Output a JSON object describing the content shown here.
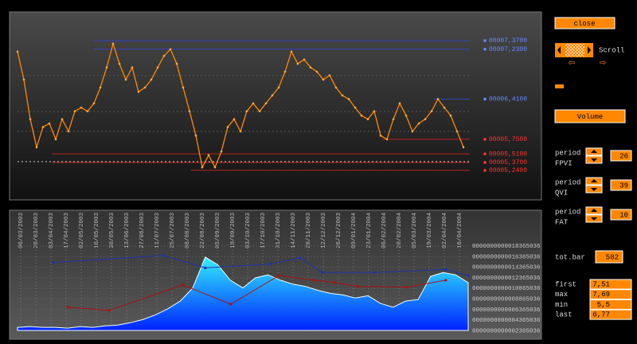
{
  "price_chart": {
    "ylim": [
      4.82,
      7.75
    ],
    "values": [
      7.19,
      6.73,
      6.08,
      5.62,
      5.95,
      6.01,
      5.75,
      6.08,
      5.88,
      6.21,
      6.27,
      6.21,
      6.34,
      6.6,
      6.93,
      7.32,
      6.99,
      6.73,
      6.93,
      6.53,
      6.6,
      6.73,
      6.93,
      7.12,
      7.23,
      6.99,
      6.6,
      6.21,
      5.81,
      5.29,
      5.49,
      5.29,
      5.55,
      5.95,
      6.08,
      5.88,
      6.21,
      6.34,
      6.21,
      6.34,
      6.47,
      6.6,
      6.86,
      7.19,
      6.99,
      7.06,
      6.93,
      6.86,
      6.73,
      6.8,
      6.6,
      6.47,
      6.41,
      6.27,
      6.14,
      6.08,
      6.21,
      5.81,
      5.75,
      6.08,
      6.34,
      6.14,
      5.88,
      6.01,
      6.08,
      6.21,
      6.41,
      6.27,
      6.14,
      5.88,
      5.62
    ],
    "levels": [
      {
        "value": 7.37,
        "label": "00007,3700",
        "color": "#3344bb"
      },
      {
        "value": 7.23,
        "label": "00007,2300",
        "color": "#3344bb"
      },
      {
        "value": 6.41,
        "label": "00006,4100",
        "color": "#3344bb"
      },
      {
        "value": 5.75,
        "label": "00005,7500",
        "color": "#bb2222"
      },
      {
        "value": 5.51,
        "label": "00005,5100",
        "color": "#bb2222"
      },
      {
        "value": 5.37,
        "label": "00005,3700",
        "color": "#bb2222"
      },
      {
        "value": 5.24,
        "label": "00005,2400",
        "color": "#bb2222"
      }
    ]
  },
  "volume_chart": {
    "ylim": [
      0,
      100
    ],
    "xlim": [
      0,
      581
    ],
    "dates": [
      "06/03/2003",
      "20/03/2003",
      "03/04/2003",
      "17/04/2003",
      "02/05/2003",
      "16/05/2003",
      "30/05/2003",
      "13/06/2003",
      "27/06/2003",
      "11/07/2003",
      "25/07/2003",
      "08/08/2003",
      "22/08/2003",
      "05/09/2003",
      "19/09/2003",
      "03/10/2003",
      "17/10/2003",
      "31/10/2003",
      "14/11/2003",
      "28/11/2003",
      "12/12/2003",
      "26/12/2003",
      "09/01/2004",
      "23/01/2004",
      "06/02/2004",
      "20/02/2004",
      "05/03/2004",
      "19/03/2004",
      "02/04/2004",
      "16/04/2004"
    ],
    "yaxis_labels": [
      "0000000000018365036",
      "0000000000016365036",
      "0000000000014365036",
      "0000000000012365036",
      "0000000000010865036",
      "0000000000008865036",
      "0000000000006365036",
      "0000000000004365036",
      "0000000000002365036"
    ],
    "area": [
      4,
      5,
      4,
      4,
      3,
      5,
      4,
      6,
      7,
      10,
      14,
      20,
      28,
      38,
      55,
      95,
      85,
      65,
      55,
      68,
      72,
      65,
      60,
      57,
      52,
      48,
      46,
      42,
      45,
      35,
      30,
      38,
      40,
      70,
      75,
      72,
      62
    ],
    "line_blue": {
      "color": "#2233aa",
      "x": [
        46,
        188,
        242,
        326,
        364,
        393,
        460,
        552,
        581
      ],
      "values": [
        88,
        97,
        81,
        86,
        94,
        75,
        75,
        79,
        71
      ]
    },
    "line_red": {
      "color": "#aa1111",
      "x": [
        65,
        118,
        213,
        275,
        337,
        383,
        409,
        439,
        501,
        552
      ],
      "values": [
        30,
        26,
        59,
        34,
        71,
        65,
        62,
        57,
        56,
        65
      ]
    }
  },
  "controls": {
    "close": "close",
    "scroll": "Scroll",
    "volume": "Volume",
    "periods": [
      {
        "label": "period",
        "name": "FPVI",
        "value": 26
      },
      {
        "label": "period",
        "name": "QVI",
        "value": 39
      },
      {
        "label": "period",
        "name": "FAT",
        "value": 10
      }
    ],
    "tot_bar": {
      "label": "tot.bar",
      "value": 582
    },
    "stats": [
      {
        "label": "first",
        "value": "7,51"
      },
      {
        "label": "max",
        "value": "7,69"
      },
      {
        "label": "min",
        "value": "5,5"
      },
      {
        "label": "last",
        "value": "6,77"
      }
    ]
  }
}
